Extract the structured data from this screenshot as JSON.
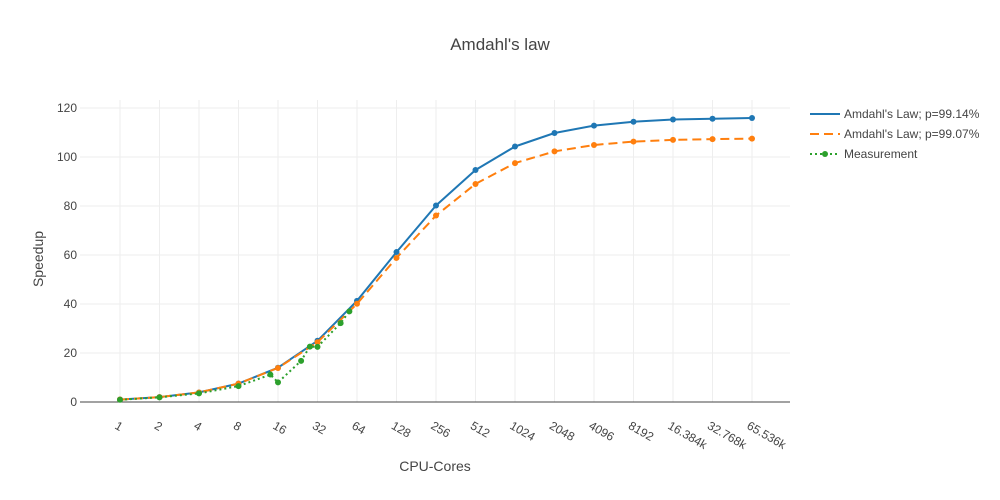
{
  "chart_data": {
    "type": "line",
    "title": "Amdahl's law",
    "xlabel": "CPU-Cores",
    "ylabel": "Speedup",
    "x_scale": "log2",
    "categories": [
      "1",
      "2",
      "4",
      "8",
      "16",
      "32",
      "64",
      "128",
      "256",
      "512",
      "1024",
      "2048",
      "4096",
      "8192",
      "16.384k",
      "32.768k",
      "65.536k"
    ],
    "y_ticks": [
      "0",
      "20",
      "40",
      "60",
      "80",
      "100",
      "120"
    ],
    "ylim": [
      -4,
      124
    ],
    "grid": true,
    "legend_position": "top-right",
    "series": [
      {
        "name": "Amdahl's Law; p=99.14%",
        "color": "#1f77b4",
        "style": "solid",
        "x": [
          1,
          2,
          4,
          8,
          16,
          32,
          64,
          128,
          256,
          512,
          1024,
          2048,
          4096,
          8192,
          16384,
          32768,
          65536
        ],
        "values": [
          1.0,
          1.98,
          3.9,
          7.5,
          14.0,
          25.0,
          41.3,
          61.2,
          80.2,
          94.7,
          104.3,
          109.8,
          112.8,
          114.4,
          115.3,
          115.6,
          115.9
        ]
      },
      {
        "name": "Amdahl's Law; p=99.07%",
        "color": "#ff7f0e",
        "style": "dash",
        "x": [
          1,
          2,
          4,
          8,
          16,
          32,
          64,
          128,
          256,
          512,
          1024,
          2048,
          4096,
          8192,
          16384,
          32768,
          65536
        ],
        "values": [
          1.0,
          1.98,
          3.9,
          7.5,
          13.9,
          24.4,
          40.1,
          58.8,
          76.1,
          89.0,
          97.5,
          102.3,
          104.9,
          106.3,
          107.0,
          107.3,
          107.5
        ]
      },
      {
        "name": "Measurement",
        "color": "#2ca02c",
        "style": "dot",
        "x": [
          1,
          2,
          4,
          8,
          14,
          16,
          24,
          28,
          32,
          48,
          56
        ],
        "values": [
          0.9,
          1.9,
          3.5,
          6.5,
          11.2,
          8.0,
          16.8,
          22.6,
          22.5,
          32.2,
          37.0
        ]
      }
    ]
  }
}
